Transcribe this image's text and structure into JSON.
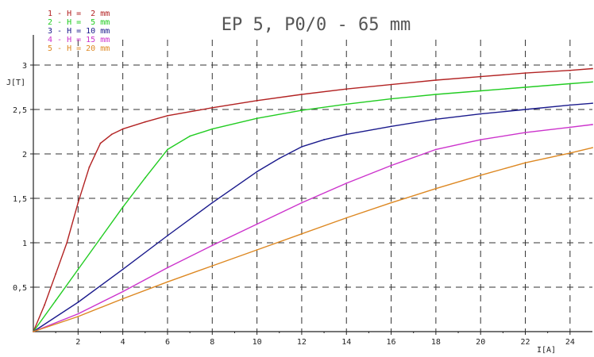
{
  "chart_data": {
    "type": "line",
    "title": "EP 5, P0/0 - 65 mm",
    "xlabel": "I[A]",
    "ylabel": "J[T]",
    "xlim": [
      0,
      25
    ],
    "ylim": [
      0,
      3.25
    ],
    "x_ticks": [
      2,
      4,
      6,
      8,
      10,
      12,
      14,
      16,
      18,
      20,
      22,
      24
    ],
    "y_ticks": [
      0.5,
      1,
      1.5,
      2,
      2.5,
      3
    ],
    "x_tick_labels": [
      "2",
      "4",
      "6",
      "8",
      "10",
      "12",
      "14",
      "16",
      "18",
      "20",
      "22",
      "24"
    ],
    "y_tick_labels": [
      "0,5",
      "1",
      "1,5",
      "2",
      "2,5",
      "3"
    ],
    "grid": true,
    "legend_position": "top-left",
    "series": [
      {
        "name": "1 - H =  2 mm",
        "color": "#b22222",
        "x": [
          0,
          0.5,
          1.0,
          1.5,
          2.0,
          2.5,
          3.0,
          3.5,
          4.0,
          5.0,
          6.0,
          8.0,
          10.0,
          12.0,
          14.0,
          16.0,
          18.0,
          20.0,
          22.0,
          24.0,
          25.0
        ],
        "y": [
          0,
          0.3,
          0.65,
          1.0,
          1.45,
          1.85,
          2.12,
          2.22,
          2.28,
          2.36,
          2.43,
          2.52,
          2.6,
          2.67,
          2.73,
          2.78,
          2.83,
          2.87,
          2.91,
          2.94,
          2.96
        ]
      },
      {
        "name": "2 - H =  5 mm",
        "color": "#22cc22",
        "x": [
          0,
          1.0,
          2.0,
          3.0,
          4.0,
          5.0,
          6.0,
          7.0,
          8.0,
          10.0,
          12.0,
          14.0,
          16.0,
          18.0,
          20.0,
          22.0,
          24.0,
          25.0
        ],
        "y": [
          0,
          0.35,
          0.7,
          1.05,
          1.4,
          1.73,
          2.05,
          2.2,
          2.28,
          2.4,
          2.49,
          2.56,
          2.62,
          2.67,
          2.71,
          2.75,
          2.79,
          2.81
        ]
      },
      {
        "name": "3 - H = 10 mm",
        "color": "#1a1a8c",
        "x": [
          0,
          2.0,
          4.0,
          6.0,
          8.0,
          10.0,
          11.0,
          12.0,
          13.0,
          14.0,
          16.0,
          18.0,
          20.0,
          22.0,
          24.0,
          25.0
        ],
        "y": [
          0,
          0.33,
          0.7,
          1.08,
          1.45,
          1.8,
          1.95,
          2.08,
          2.16,
          2.22,
          2.31,
          2.39,
          2.45,
          2.5,
          2.55,
          2.57
        ]
      },
      {
        "name": "4 - H = 15 mm",
        "color": "#cc33cc",
        "x": [
          0,
          2.0,
          4.0,
          6.0,
          8.0,
          10.0,
          12.0,
          14.0,
          16.0,
          18.0,
          20.0,
          22.0,
          24.0,
          25.0
        ],
        "y": [
          0,
          0.2,
          0.45,
          0.72,
          0.97,
          1.21,
          1.45,
          1.67,
          1.87,
          2.05,
          2.16,
          2.24,
          2.3,
          2.33
        ]
      },
      {
        "name": "5 - H = 20 mm",
        "color": "#dd8822",
        "x": [
          0,
          2.0,
          4.0,
          6.0,
          8.0,
          10.0,
          12.0,
          14.0,
          16.0,
          18.0,
          20.0,
          22.0,
          24.0,
          25.0
        ],
        "y": [
          0,
          0.17,
          0.37,
          0.56,
          0.74,
          0.92,
          1.1,
          1.28,
          1.45,
          1.61,
          1.76,
          1.9,
          2.01,
          2.07
        ]
      }
    ]
  }
}
